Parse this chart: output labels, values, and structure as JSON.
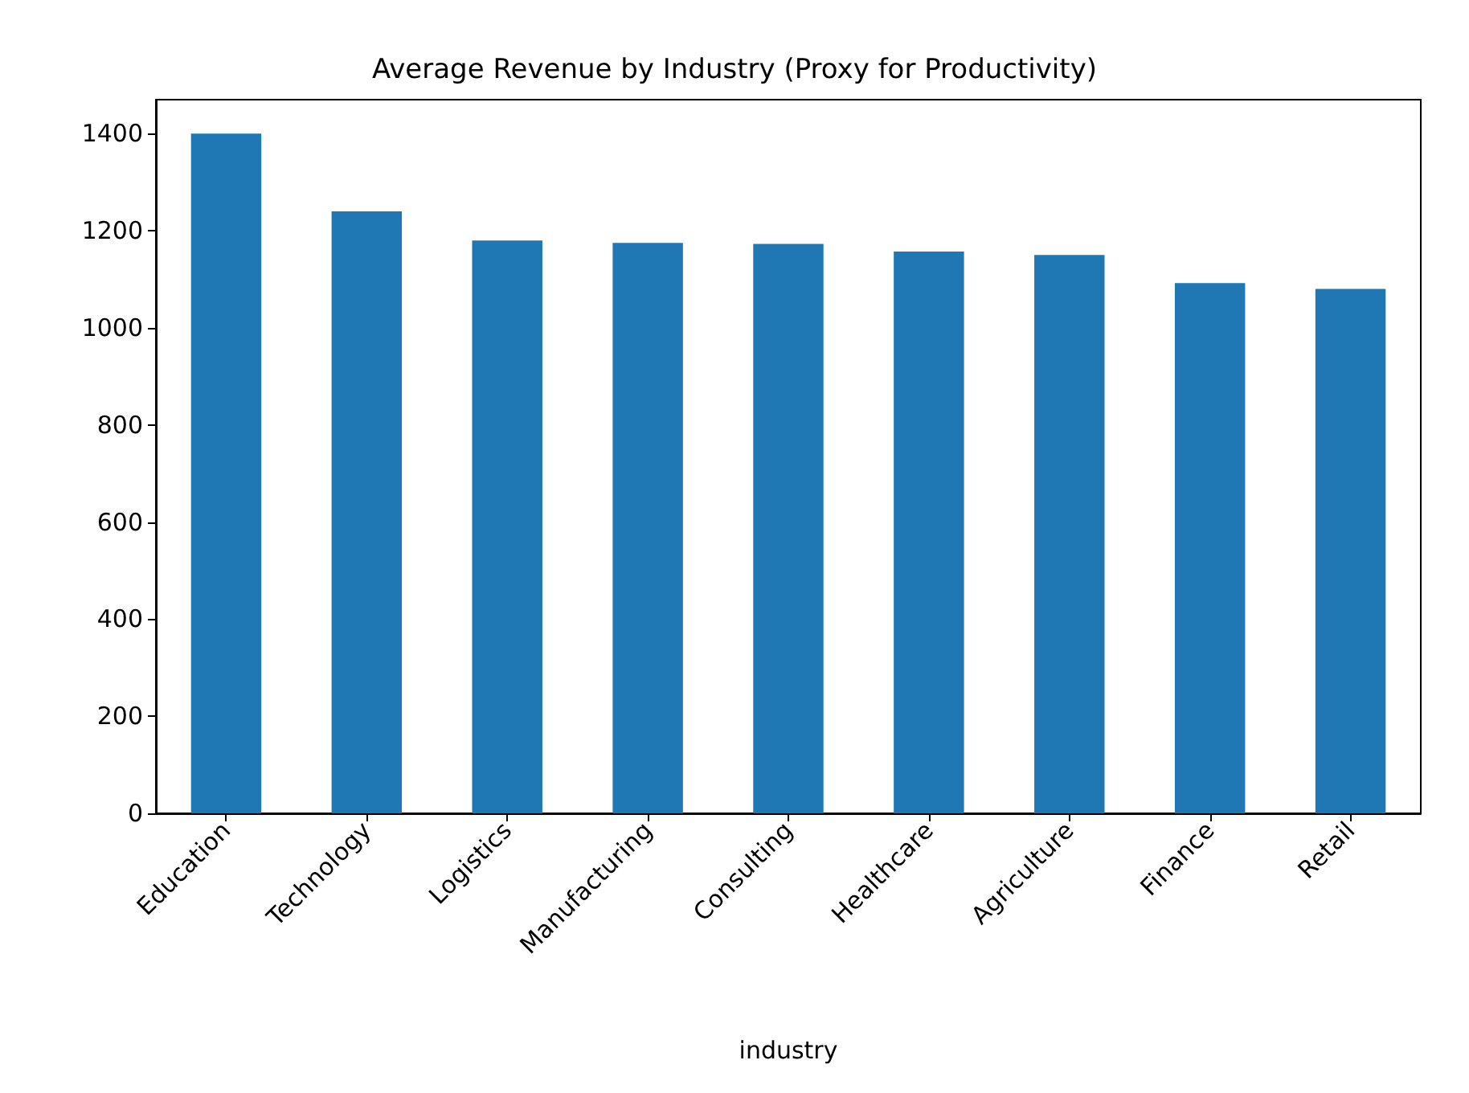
{
  "chart_data": {
    "type": "bar",
    "title": "Average Revenue by Industry (Proxy for Productivity)",
    "xlabel": "industry",
    "categories": [
      "Education",
      "Technology",
      "Logistics",
      "Manufacturing",
      "Consulting",
      "Healthcare",
      "Agriculture",
      "Finance",
      "Retail"
    ],
    "values": [
      1400,
      1240,
      1180,
      1175,
      1173,
      1157,
      1150,
      1092,
      1080
    ],
    "color": "#1f77b4",
    "ylim": [
      0,
      1470
    ],
    "yticks": [
      0,
      200,
      400,
      600,
      800,
      1000,
      1200,
      1400
    ],
    "grid": false
  }
}
